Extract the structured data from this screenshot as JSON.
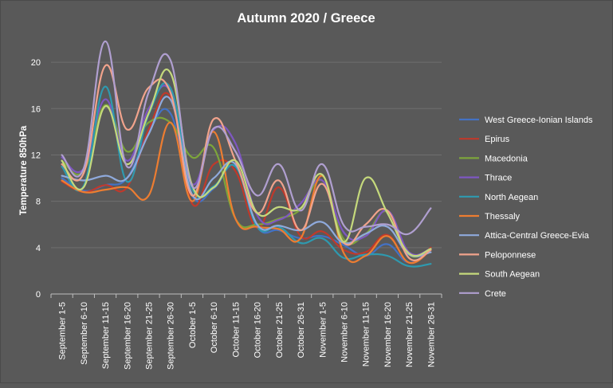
{
  "chart_data": {
    "type": "line",
    "title": "Autumn 2020 / Greece",
    "xlabel": "",
    "ylabel": "Temperature 850hPa",
    "ylim": [
      0,
      22
    ],
    "yticks": [
      0,
      4,
      8,
      12,
      16,
      20
    ],
    "grid": "horizontal",
    "legend_position": "right",
    "smooth": true,
    "categories": [
      "September 1-5",
      "September 6-10",
      "September 11-15",
      "September 16-20",
      "September 21-25",
      "September 26-30",
      "October 1-5",
      "October 6-10",
      "October 11-15",
      "October 16-20",
      "October 21-25",
      "October 26-31",
      "November 1-5",
      "November 6-10",
      "November 11-15",
      "November 16-20",
      "November 21-25",
      "November 26-31"
    ],
    "series": [
      {
        "name": "West Greece-Ionian Islands",
        "color": "#4472C4",
        "values": [
          10.0,
          8.9,
          9.4,
          10.0,
          14.0,
          15.6,
          8.5,
          9.1,
          11.0,
          5.8,
          5.5,
          4.8,
          5.0,
          4.2,
          3.3,
          4.3,
          2.7,
          3.9
        ]
      },
      {
        "name": "Epirus",
        "color": "#C0392B",
        "values": [
          9.7,
          8.8,
          9.4,
          9.2,
          14.2,
          17.0,
          7.8,
          11.2,
          10.6,
          5.7,
          9.2,
          5.0,
          5.4,
          3.8,
          3.6,
          5.1,
          2.7,
          4.0
        ]
      },
      {
        "name": "Macedonia",
        "color": "#7DA53B",
        "values": [
          11.5,
          10.6,
          16.3,
          12.3,
          14.8,
          14.8,
          11.8,
          12.6,
          6.5,
          6.0,
          6.5,
          7.3,
          9.8,
          4.7,
          5.2,
          7.1,
          3.4,
          3.9
        ]
      },
      {
        "name": "Thrace",
        "color": "#7E57C2",
        "values": [
          11.8,
          10.8,
          16.8,
          11.5,
          16.0,
          17.5,
          9.5,
          14.2,
          13.0,
          6.8,
          6.4,
          7.8,
          9.8,
          5.3,
          5.0,
          7.2,
          3.6,
          3.9
        ]
      },
      {
        "name": "North Aegean",
        "color": "#2E9AB0",
        "values": [
          11.0,
          9.3,
          17.9,
          9.7,
          15.5,
          17.8,
          9.1,
          9.3,
          11.0,
          5.8,
          5.8,
          4.4,
          4.8,
          3.1,
          3.4,
          3.3,
          2.4,
          2.6
        ]
      },
      {
        "name": "Thessaly",
        "color": "#ED7D31",
        "values": [
          9.8,
          8.8,
          9.0,
          9.2,
          8.5,
          14.8,
          8.0,
          14.0,
          6.5,
          5.8,
          5.6,
          4.8,
          10.2,
          3.5,
          3.3,
          5.0,
          2.7,
          3.8
        ]
      },
      {
        "name": "Attica-Central Greece-Evia",
        "color": "#8FAADC",
        "values": [
          10.2,
          9.8,
          10.2,
          10.0,
          13.8,
          16.8,
          8.6,
          10.0,
          11.2,
          6.0,
          5.9,
          5.5,
          6.2,
          4.4,
          5.2,
          5.8,
          3.4,
          3.6
        ]
      },
      {
        "name": "Peloponnese",
        "color": "#F1A38C",
        "values": [
          11.2,
          10.4,
          19.7,
          14.2,
          17.8,
          17.4,
          8.5,
          15.1,
          11.5,
          7.0,
          9.8,
          5.5,
          9.5,
          4.4,
          6.0,
          7.2,
          3.1,
          3.8
        ]
      },
      {
        "name": "South Aegean",
        "color": "#C5D97C",
        "values": [
          11.5,
          9.2,
          16.2,
          11.2,
          15.6,
          19.1,
          9.4,
          9.2,
          11.5,
          7.0,
          7.5,
          7.4,
          10.3,
          4.5,
          10.0,
          7.0,
          3.5,
          3.9
        ]
      },
      {
        "name": "Crete",
        "color": "#B09FD0",
        "values": [
          12.0,
          10.8,
          21.8,
          11.0,
          17.4,
          20.2,
          9.3,
          14.3,
          12.3,
          8.5,
          11.2,
          7.2,
          11.2,
          5.9,
          5.8,
          6.0,
          5.2,
          7.4
        ]
      }
    ]
  }
}
